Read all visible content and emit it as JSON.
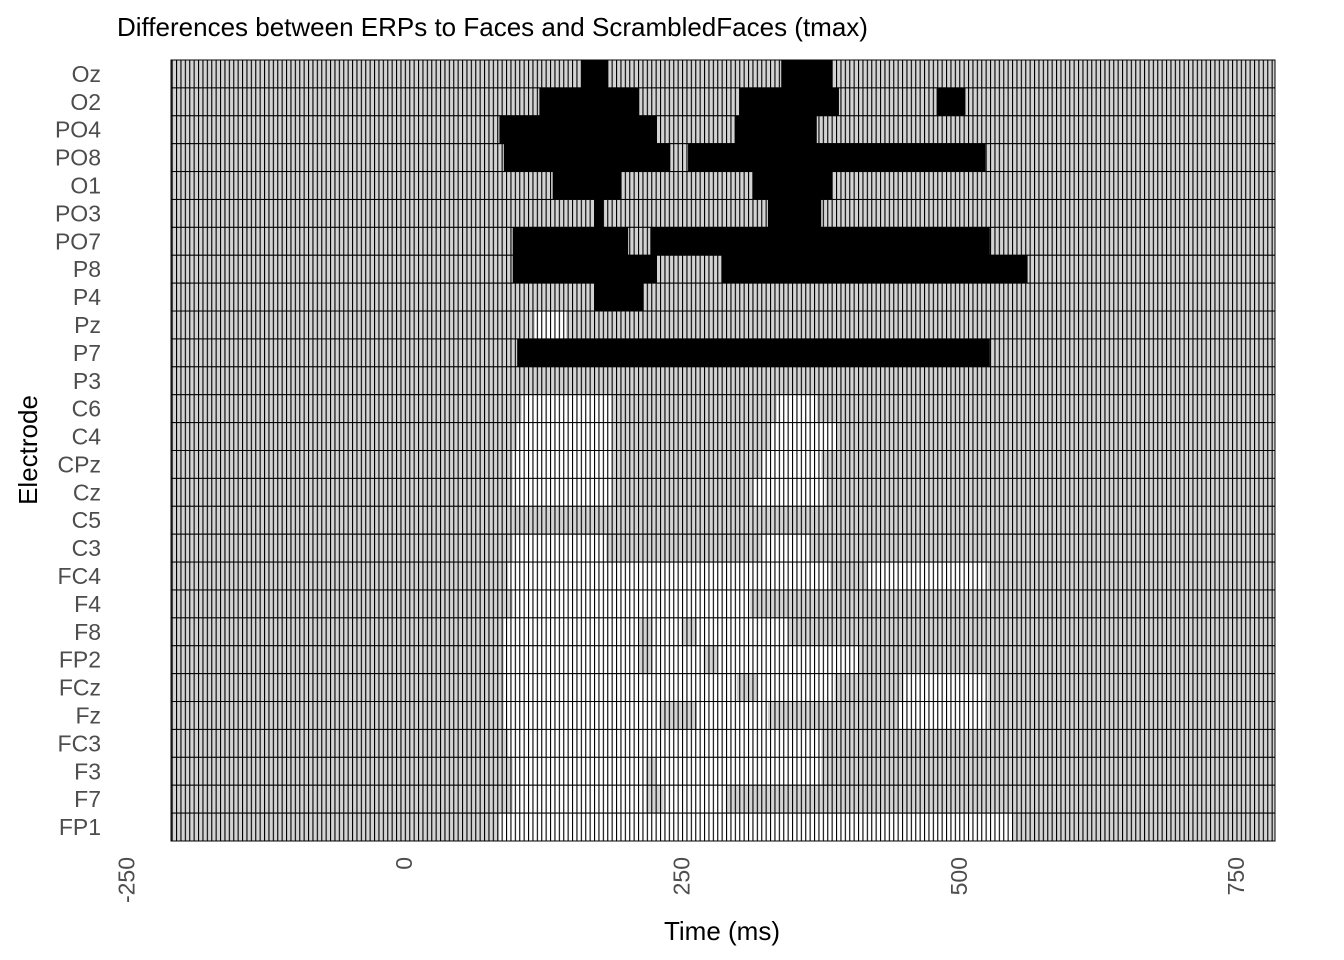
{
  "chart_data": {
    "type": "heatmap",
    "title": "Differences between ERPs to Faces and ScrambledFaces (tmax)",
    "xlabel": "Time (ms)",
    "ylabel": "Electrode",
    "x_ticks": [
      "-250",
      "0",
      "250",
      "500",
      "750"
    ],
    "x_tick_values": [
      -250,
      0,
      250,
      500,
      750
    ],
    "xlim": [
      -210,
      785
    ],
    "time_step_ms": 4,
    "electrodes": [
      "Oz",
      "O2",
      "PO4",
      "PO8",
      "O1",
      "PO3",
      "PO7",
      "P8",
      "P4",
      "Pz",
      "P7",
      "P3",
      "C6",
      "C4",
      "CPz",
      "Cz",
      "C5",
      "C3",
      "FC4",
      "F4",
      "F8",
      "FP2",
      "FCz",
      "Fz",
      "FC3",
      "F3",
      "F7",
      "FP1"
    ],
    "levels": [
      "significant",
      "not significant"
    ],
    "colors": {
      "significant": "#000000",
      "not_significant": "#d3d3d3",
      "cell_border": "#000000",
      "light_cells": "#ffffff"
    },
    "significant_windows": {
      "Oz": [
        [
          160,
          184
        ],
        [
          340,
          386
        ]
      ],
      "O2": [
        [
          122,
          212
        ],
        [
          302,
          392
        ],
        [
          480,
          506
        ]
      ],
      "PO4": [
        [
          86,
          228
        ],
        [
          298,
          372
        ]
      ],
      "PO8": [
        [
          90,
          240
        ],
        [
          256,
          524
        ]
      ],
      "O1": [
        [
          134,
          196
        ],
        [
          314,
          386
        ]
      ],
      "PO3": [
        [
          172,
          180
        ],
        [
          328,
          376
        ]
      ],
      "PO7": [
        [
          98,
          202
        ],
        [
          222,
          528
        ]
      ],
      "P8": [
        [
          98,
          228
        ],
        [
          286,
          562
        ]
      ],
      "P4": [
        [
          172,
          216
        ]
      ],
      "Pz": [],
      "P7": [
        [
          102,
          528
        ]
      ],
      "P3": [],
      "C6": [],
      "C4": [],
      "CPz": [],
      "Cz": [],
      "C5": [],
      "C3": [],
      "FC4": [],
      "F4": [],
      "F8": [],
      "FP2": [],
      "FCz": [],
      "Fz": [],
      "FC3": [],
      "F3": [],
      "F7": [],
      "FP1": []
    },
    "light_windows": {
      "Pz": [
        [
          118,
          146
        ]
      ],
      "C6": [
        [
          106,
          188
        ],
        [
          336,
          372
        ]
      ],
      "C4": [
        [
          102,
          188
        ],
        [
          330,
          390
        ]
      ],
      "CPz": [
        [
          98,
          188
        ],
        [
          322,
          376
        ]
      ],
      "Cz": [
        [
          98,
          188
        ],
        [
          314,
          380
        ]
      ],
      "C3": [
        [
          98,
          182
        ],
        [
          322,
          366
        ]
      ],
      "FC4": [
        [
          94,
          384
        ],
        [
          418,
          526
        ]
      ],
      "F4": [
        [
          98,
          312
        ]
      ],
      "F8": [
        [
          90,
          212
        ],
        [
          224,
          250
        ],
        [
          264,
          346
        ]
      ],
      "FP2": [
        [
          90,
          212
        ],
        [
          224,
          270
        ],
        [
          282,
          410
        ]
      ],
      "FCz": [
        [
          90,
          300
        ],
        [
          318,
          388
        ],
        [
          450,
          526
        ]
      ],
      "Fz": [
        [
          90,
          230
        ],
        [
          264,
          328
        ],
        [
          446,
          526
        ]
      ],
      "FC3": [
        [
          94,
          376
        ]
      ],
      "F3": [
        [
          98,
          218
        ],
        [
          228,
          376
        ]
      ],
      "F7": [
        [
          98,
          218
        ],
        [
          234,
          290
        ]
      ],
      "FP1": [
        [
          86,
          548
        ]
      ]
    },
    "legend": "none"
  }
}
